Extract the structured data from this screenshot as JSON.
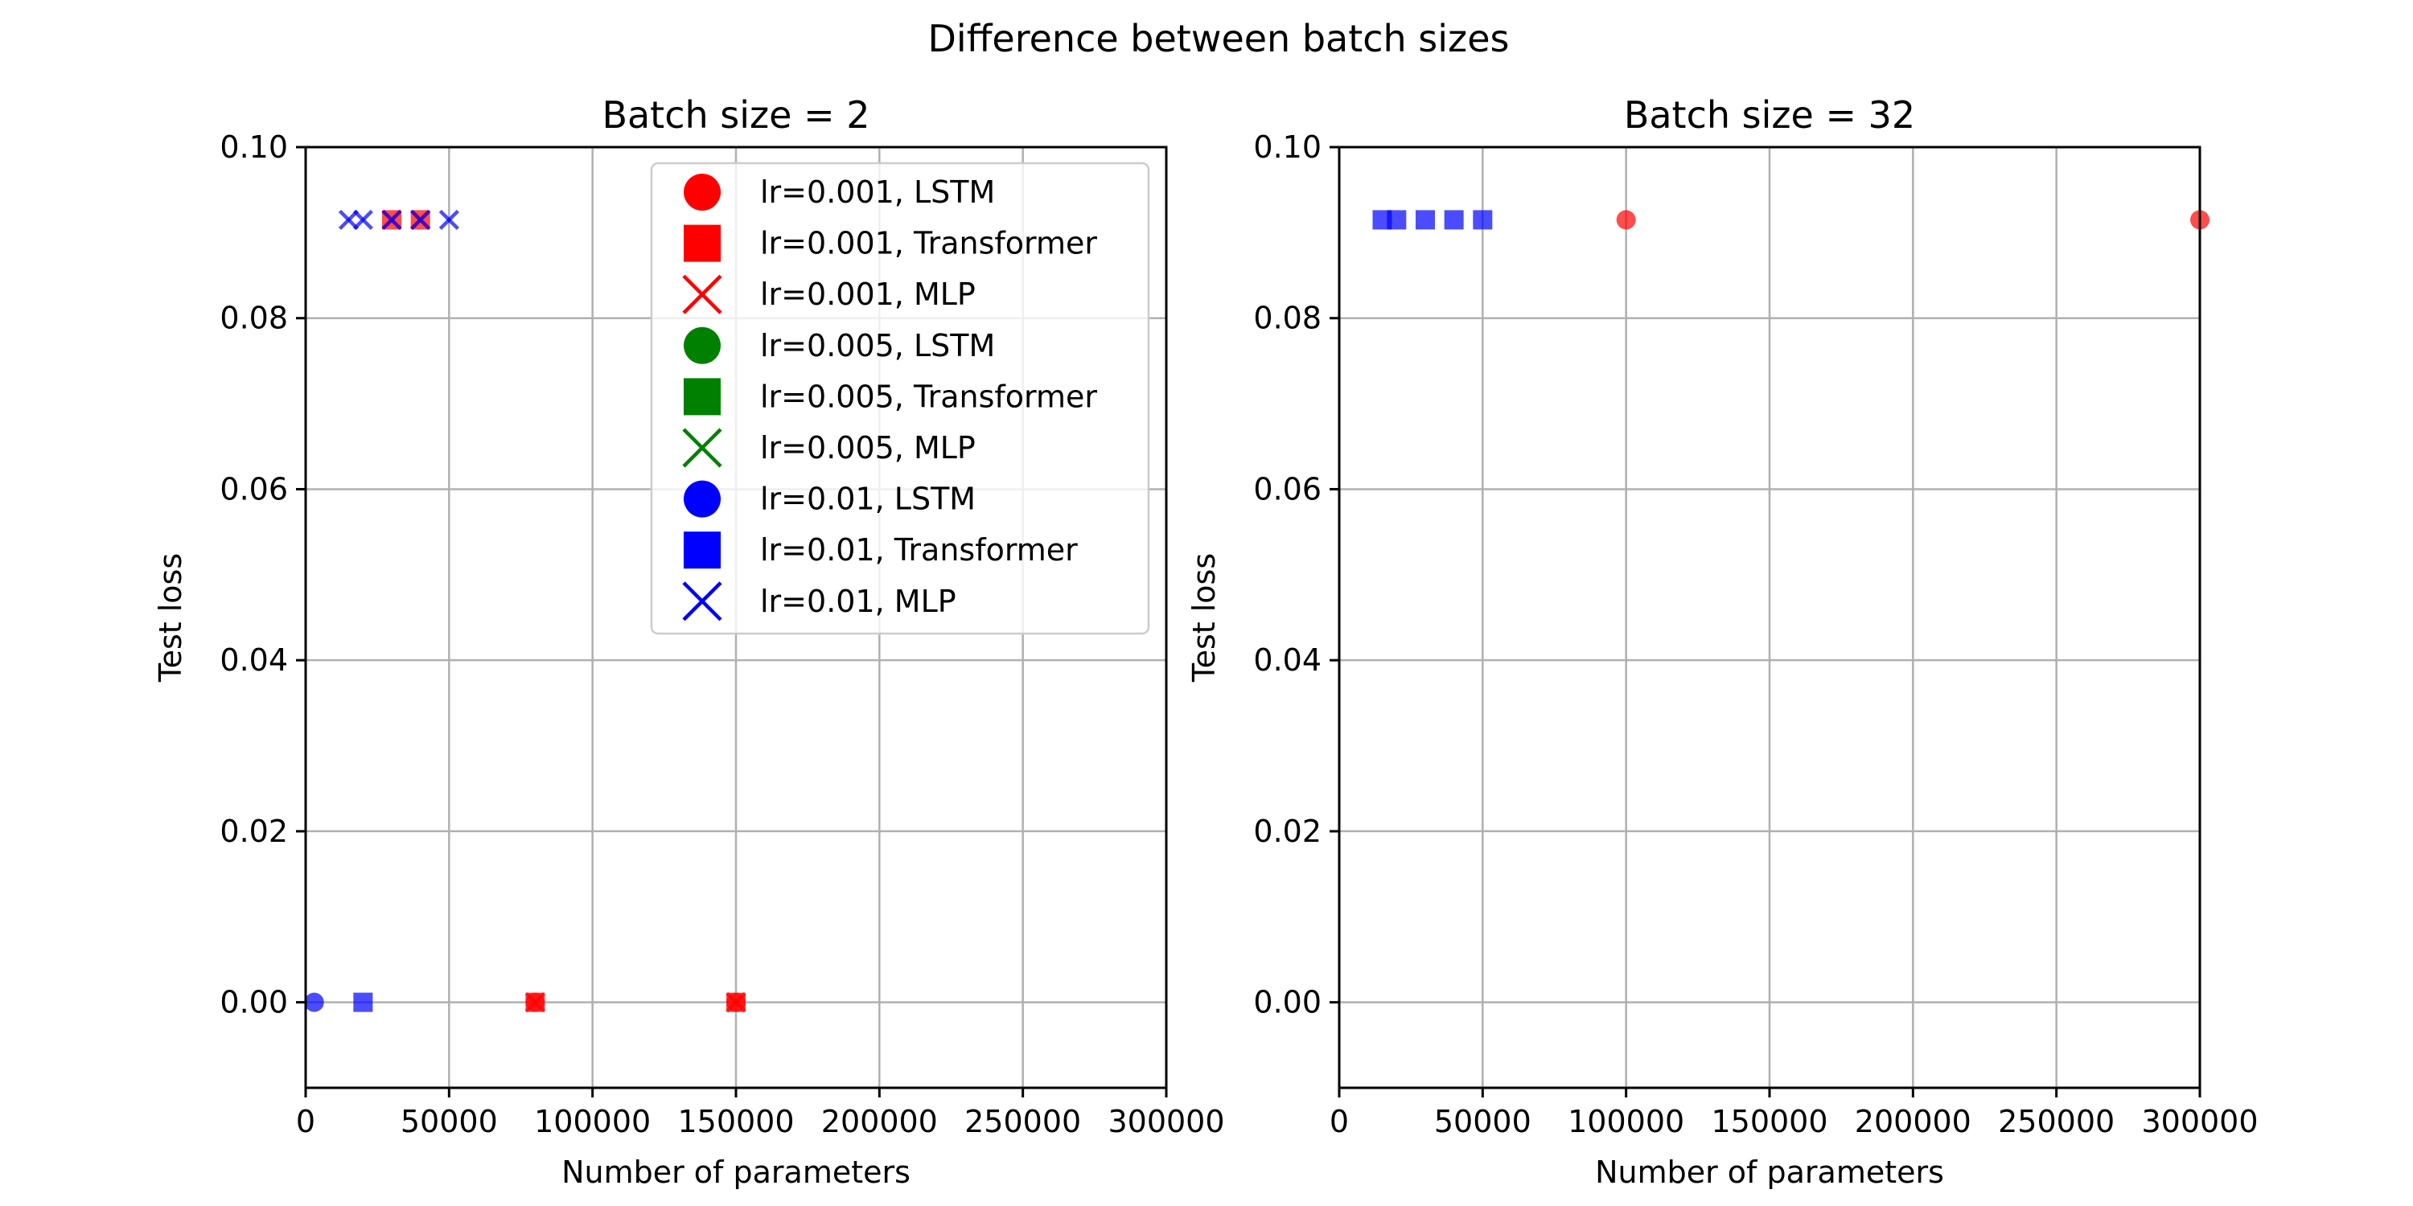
{
  "chart_data": {
    "title": "Difference between batch sizes",
    "type": "scatter",
    "legend": {
      "placement": "top-right of left panel",
      "entries": [
        {
          "label": "lr=0.001, LSTM",
          "color": "#ff0000",
          "marker": "circle"
        },
        {
          "label": "lr=0.001, Transformer",
          "color": "#ff0000",
          "marker": "square"
        },
        {
          "label": "lr=0.001, MLP",
          "color": "#ff0000",
          "marker": "x"
        },
        {
          "label": "lr=0.005, LSTM",
          "color": "#008000",
          "marker": "circle"
        },
        {
          "label": "lr=0.005, Transformer",
          "color": "#008000",
          "marker": "square"
        },
        {
          "label": "lr=0.005, MLP",
          "color": "#008000",
          "marker": "x"
        },
        {
          "label": "lr=0.01, LSTM",
          "color": "#0000ff",
          "marker": "circle"
        },
        {
          "label": "lr=0.01, Transformer",
          "color": "#0000ff",
          "marker": "square"
        },
        {
          "label": "lr=0.01, MLP",
          "color": "#0000ff",
          "marker": "x"
        }
      ]
    },
    "panels": [
      {
        "title": "Batch size = 2",
        "xlabel": "Number of parameters",
        "ylabel": "Test loss",
        "xlim": [
          0,
          300000
        ],
        "ylim": [
          -0.01,
          0.1
        ],
        "grid": true,
        "xticks": [
          "0",
          "50000",
          "100000",
          "150000",
          "200000",
          "250000",
          "300000"
        ],
        "yticks": [
          "0.00",
          "0.02",
          "0.04",
          "0.06",
          "0.08",
          "0.10"
        ],
        "xtick_values": [
          0,
          50000,
          100000,
          150000,
          200000,
          250000,
          300000
        ],
        "ytick_values": [
          0,
          0.02,
          0.04,
          0.06,
          0.08,
          0.1
        ],
        "points": [
          {
            "x": 80000,
            "y": 0.0,
            "color": "#ff0000",
            "marker": "circle"
          },
          {
            "x": 150000,
            "y": 0.0,
            "color": "#ff0000",
            "marker": "circle"
          },
          {
            "x": 80000,
            "y": 0.0,
            "color": "#ff0000",
            "marker": "square"
          },
          {
            "x": 150000,
            "y": 0.0,
            "color": "#ff0000",
            "marker": "square"
          },
          {
            "x": 30000,
            "y": 0.0915,
            "color": "#ff0000",
            "marker": "square"
          },
          {
            "x": 40000,
            "y": 0.0915,
            "color": "#ff0000",
            "marker": "square"
          },
          {
            "x": 80000,
            "y": 0.0,
            "color": "#ff0000",
            "marker": "x"
          },
          {
            "x": 150000,
            "y": 0.0,
            "color": "#ff0000",
            "marker": "x"
          },
          {
            "x": 30000,
            "y": 0.0915,
            "color": "#ff0000",
            "marker": "x"
          },
          {
            "x": 40000,
            "y": 0.0915,
            "color": "#ff0000",
            "marker": "x"
          },
          {
            "x": 3000,
            "y": 0.0,
            "color": "#0000ff",
            "marker": "circle"
          },
          {
            "x": 20000,
            "y": 0.0,
            "color": "#0000ff",
            "marker": "square"
          },
          {
            "x": 15000,
            "y": 0.0915,
            "color": "#0000ff",
            "marker": "x"
          },
          {
            "x": 20000,
            "y": 0.0915,
            "color": "#0000ff",
            "marker": "x"
          },
          {
            "x": 30000,
            "y": 0.0915,
            "color": "#0000ff",
            "marker": "x"
          },
          {
            "x": 40000,
            "y": 0.0915,
            "color": "#0000ff",
            "marker": "x"
          },
          {
            "x": 50000,
            "y": 0.0915,
            "color": "#0000ff",
            "marker": "x"
          }
        ]
      },
      {
        "title": "Batch size = 32",
        "xlabel": "Number of parameters",
        "ylabel": "Test loss",
        "xlim": [
          0,
          300000
        ],
        "ylim": [
          -0.01,
          0.1
        ],
        "grid": true,
        "xticks": [
          "0",
          "50000",
          "100000",
          "150000",
          "200000",
          "250000",
          "300000"
        ],
        "yticks": [
          "0.00",
          "0.02",
          "0.04",
          "0.06",
          "0.08",
          "0.10"
        ],
        "xtick_values": [
          0,
          50000,
          100000,
          150000,
          200000,
          250000,
          300000
        ],
        "ytick_values": [
          0,
          0.02,
          0.04,
          0.06,
          0.08,
          0.1
        ],
        "points": [
          {
            "x": 100000,
            "y": 0.0915,
            "color": "#ff0000",
            "marker": "circle"
          },
          {
            "x": 300000,
            "y": 0.0915,
            "color": "#ff0000",
            "marker": "circle"
          },
          {
            "x": 15000,
            "y": 0.0915,
            "color": "#0000ff",
            "marker": "square"
          },
          {
            "x": 20000,
            "y": 0.0915,
            "color": "#0000ff",
            "marker": "square"
          },
          {
            "x": 30000,
            "y": 0.0915,
            "color": "#0000ff",
            "marker": "square"
          },
          {
            "x": 40000,
            "y": 0.0915,
            "color": "#0000ff",
            "marker": "square"
          },
          {
            "x": 50000,
            "y": 0.0915,
            "color": "#0000ff",
            "marker": "square"
          }
        ]
      }
    ]
  }
}
